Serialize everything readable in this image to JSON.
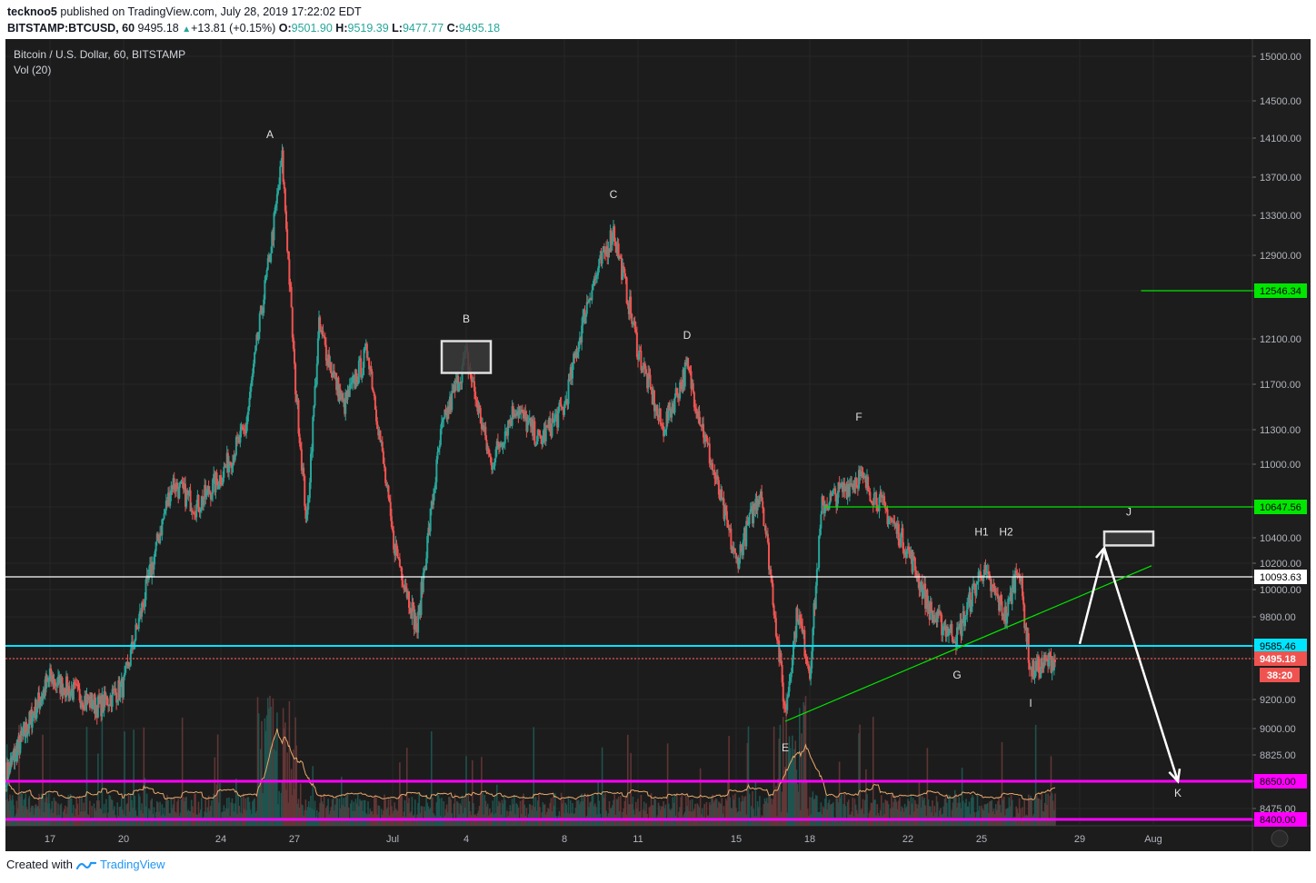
{
  "header": {
    "user": "tecknoo5",
    "published": "published on TradingView.com, July 28, 2019 17:22:02 EDT",
    "symbol": "BITSTAMP:BTCUSD, 60",
    "last": "9495.18",
    "change": "+13.81 (+0.15%)",
    "o_label": "O:",
    "o": "9501.90",
    "h_label": "H:",
    "h": "9519.39",
    "l_label": "L:",
    "l": "9477.77",
    "c_label": "C:",
    "c": "9495.18"
  },
  "legend": {
    "title": "Bitcoin / U.S. Dollar, 60, BITSTAMP",
    "vol": "Vol (20)"
  },
  "footer": {
    "created": "Created with",
    "brand": "TradingView"
  },
  "colors": {
    "background": "#1c1c1c",
    "up": "#26a69a",
    "down": "#ef5350",
    "magenta": "#ff00ff",
    "cyan": "#00e5ff",
    "green": "#00e600",
    "white": "#ffffff"
  },
  "chart_data": {
    "type": "candlestick",
    "y_axis": {
      "ticks": [
        "15000.00",
        "14500.00",
        "14100.00",
        "13700.00",
        "13300.00",
        "12900.00",
        "12546.34",
        "12100.00",
        "11700.00",
        "11300.00",
        "11000.00",
        "10647.56",
        "10400.00",
        "10200.00",
        "10093.63",
        "10000.00",
        "9800.00",
        "9585.46",
        "9495.18",
        "9200.00",
        "9000.00",
        "8825.00",
        "8650.00",
        "8475.00",
        "8400.00"
      ],
      "countdown": "38:20"
    },
    "x_axis": {
      "ticks": [
        "17",
        "20",
        "24",
        "27",
        "Jul",
        "4",
        "8",
        "11",
        "15",
        "18",
        "22",
        "25",
        "29",
        "Aug"
      ]
    },
    "price_path": [
      [
        "14 Jun",
        8700
      ],
      [
        "17 Jun",
        9350
      ],
      [
        "19 Jun",
        9150
      ],
      [
        "20 Jun",
        9300
      ],
      [
        "21 Jun",
        10050
      ],
      [
        "22 Jun",
        10850
      ],
      [
        "23 Jun",
        10650
      ],
      [
        "24 Jun",
        10900
      ],
      [
        "25 Jun",
        11300
      ],
      [
        "26 Jun",
        12900
      ],
      [
        "26 Jun",
        13880
      ],
      [
        "27 Jun",
        11800
      ],
      [
        "27 Jun",
        10500
      ],
      [
        "28 Jun",
        12200
      ],
      [
        "29 Jun",
        11500
      ],
      [
        "30 Jun",
        12000
      ],
      [
        "1 Jul",
        10400
      ],
      [
        "2 Jul",
        9700
      ],
      [
        "3 Jul",
        11300
      ],
      [
        "4 Jul",
        11950
      ],
      [
        "5 Jul",
        11000
      ],
      [
        "6 Jul",
        11500
      ],
      [
        "7 Jul",
        11200
      ],
      [
        "8 Jul",
        11500
      ],
      [
        "9 Jul",
        12500
      ],
      [
        "10 Jul",
        13150
      ],
      [
        "11 Jul",
        12000
      ],
      [
        "12 Jul",
        11300
      ],
      [
        "13 Jul",
        11850
      ],
      [
        "14 Jul",
        11000
      ],
      [
        "15 Jul",
        10200
      ],
      [
        "16 Jul",
        10800
      ],
      [
        "17 Jul",
        9100
      ],
      [
        "17 Jul",
        9850
      ],
      [
        "18 Jul",
        9400
      ],
      [
        "18 Jul",
        10650
      ],
      [
        "20 Jul",
        10900
      ],
      [
        "21 Jul",
        10650
      ],
      [
        "22 Jul",
        10300
      ],
      [
        "23 Jul",
        9800
      ],
      [
        "24 Jul",
        9650
      ],
      [
        "25 Jul",
        10150
      ],
      [
        "26 Jul",
        9800
      ],
      [
        "26 Jul",
        10200
      ],
      [
        "27 Jul",
        9400
      ],
      [
        "28 Jul",
        9495
      ]
    ],
    "vol_label": "Vol (20)",
    "horizontal_lines": [
      {
        "value": 12546.34,
        "color": "#00e600"
      },
      {
        "value": 10647.56,
        "color": "#00e600"
      },
      {
        "value": 10093.63,
        "color": "#ffffff"
      },
      {
        "value": 9585.46,
        "color": "#00e5ff"
      },
      {
        "value": 9495.18,
        "color": "#ef5350"
      },
      {
        "value": 8650.0,
        "color": "#ff00ff"
      },
      {
        "value": 8400.0,
        "color": "#ff00ff"
      }
    ],
    "trendline": {
      "from": [
        "17 Jul",
        9050
      ],
      "to": [
        "31 Jul",
        10180
      ],
      "color": "#00e600"
    },
    "boxes": [
      {
        "from": [
          "3 Jul",
          12080
        ],
        "to": [
          "5 Jul",
          11800
        ],
        "fill": "#3a3a3a"
      },
      {
        "from": [
          "30 Jul",
          10450
        ],
        "to": [
          "1 Aug",
          10340
        ],
        "fill": "#3a3a3a"
      }
    ],
    "arrows": [
      {
        "from": [
          "29 Jul",
          9600
        ],
        "to": [
          "30 Jul",
          10320
        ]
      },
      {
        "from": [
          "30 Jul",
          10320
        ],
        "to": [
          "2 Aug",
          8650
        ]
      }
    ],
    "annotations": [
      {
        "text": "A",
        "at": [
          "26 Jun",
          14100
        ]
      },
      {
        "text": "B",
        "at": [
          "4 Jul",
          12250
        ]
      },
      {
        "text": "C",
        "at": [
          "10 Jul",
          13480
        ]
      },
      {
        "text": "D",
        "at": [
          "13 Jul",
          12100
        ]
      },
      {
        "text": "E",
        "at": [
          "17 Jul",
          8850
        ]
      },
      {
        "text": "F",
        "at": [
          "20 Jul",
          11380
        ]
      },
      {
        "text": "G",
        "at": [
          "24 Jul",
          9350
        ]
      },
      {
        "text": "H1",
        "at": [
          "25 Jul",
          10420
        ]
      },
      {
        "text": "H2",
        "at": [
          "26 Jul",
          10420
        ]
      },
      {
        "text": "I",
        "at": [
          "27 Jul",
          9150
        ]
      },
      {
        "text": "J",
        "at": [
          "31 Jul",
          10580
        ]
      },
      {
        "text": "K",
        "at": [
          "2 Aug",
          8550
        ]
      }
    ]
  }
}
